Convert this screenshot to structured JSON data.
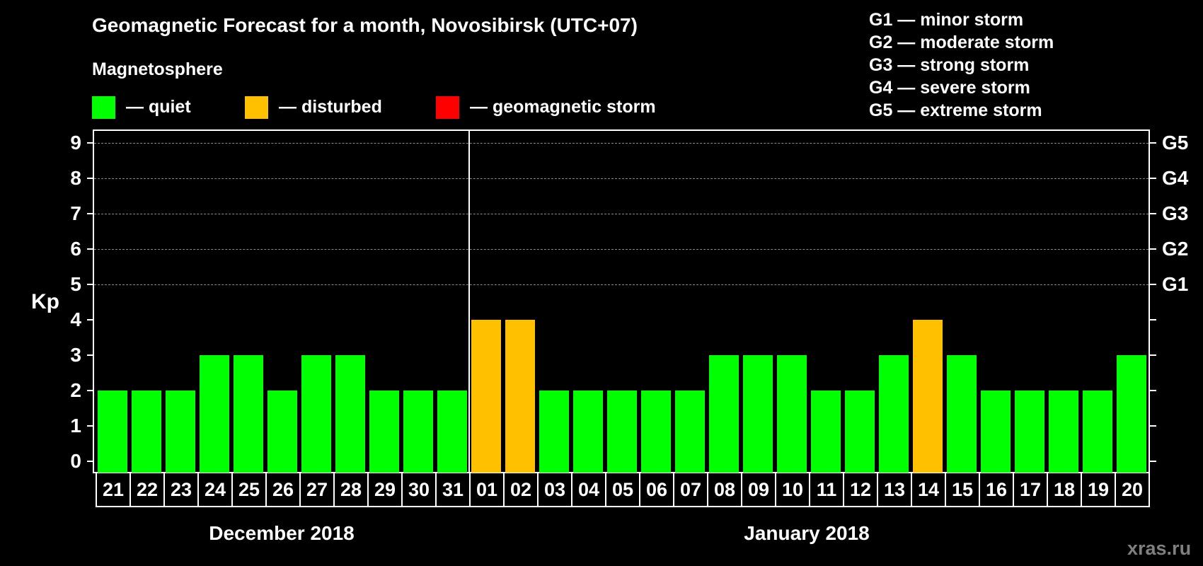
{
  "title": "Geomagnetic Forecast for a month, Novosibirsk (UTC+07)",
  "subtitle": "Magnetosphere",
  "legend": [
    {
      "label": "— quiet",
      "color": "#00ff00"
    },
    {
      "label": "— disturbed",
      "color": "#ffc000"
    },
    {
      "label": "— geomagnetic storm",
      "color": "#ff0000"
    }
  ],
  "g_legend": [
    "G1 — minor storm",
    "G2 — moderate storm",
    "G3 — strong storm",
    "G4 — severe storm",
    "G5 — extreme storm"
  ],
  "axis": {
    "ylabel": "Kp",
    "yticks": [
      "0",
      "1",
      "2",
      "3",
      "4",
      "5",
      "6",
      "7",
      "8",
      "9"
    ],
    "right_labels": [
      "G1",
      "G2",
      "G3",
      "G4",
      "G5"
    ]
  },
  "months": [
    "December 2018",
    "January 2018"
  ],
  "watermark": "xras.ru",
  "chart_data": {
    "type": "bar",
    "title": "Geomagnetic Forecast for a month, Novosibirsk (UTC+07)",
    "subtitle": "Magnetosphere",
    "xlabel": "",
    "ylabel": "Kp",
    "ylim": [
      0,
      9
    ],
    "grid": "dashed horizontal at Kp 5-9",
    "categories": [
      "21",
      "22",
      "23",
      "24",
      "25",
      "26",
      "27",
      "28",
      "29",
      "30",
      "31",
      "01",
      "02",
      "03",
      "04",
      "05",
      "06",
      "07",
      "08",
      "09",
      "10",
      "11",
      "12",
      "13",
      "14",
      "15",
      "16",
      "17",
      "18",
      "19",
      "20"
    ],
    "month_groups": [
      {
        "label": "December 2018",
        "days": [
          "21",
          "22",
          "23",
          "24",
          "25",
          "26",
          "27",
          "28",
          "29",
          "30",
          "31"
        ]
      },
      {
        "label": "January 2018",
        "days": [
          "01",
          "02",
          "03",
          "04",
          "05",
          "06",
          "07",
          "08",
          "09",
          "10",
          "11",
          "12",
          "13",
          "14",
          "15",
          "16",
          "17",
          "18",
          "19",
          "20"
        ]
      }
    ],
    "values": [
      2,
      2,
      2,
      3,
      3,
      2,
      3,
      3,
      2,
      2,
      2,
      4,
      4,
      2,
      2,
      2,
      2,
      2,
      3,
      3,
      3,
      2,
      2,
      3,
      4,
      3,
      2,
      2,
      2,
      2,
      3
    ],
    "status": [
      "quiet",
      "quiet",
      "quiet",
      "quiet",
      "quiet",
      "quiet",
      "quiet",
      "quiet",
      "quiet",
      "quiet",
      "quiet",
      "disturbed",
      "disturbed",
      "quiet",
      "quiet",
      "quiet",
      "quiet",
      "quiet",
      "quiet",
      "quiet",
      "quiet",
      "quiet",
      "quiet",
      "quiet",
      "disturbed",
      "quiet",
      "quiet",
      "quiet",
      "quiet",
      "quiet",
      "quiet"
    ],
    "legend": {
      "quiet": "#00ff00",
      "disturbed": "#ffc000",
      "geomagnetic storm": "#ff0000"
    },
    "right_axis": {
      "G1": 5,
      "G2": 6,
      "G3": 7,
      "G4": 8,
      "G5": 9
    }
  }
}
